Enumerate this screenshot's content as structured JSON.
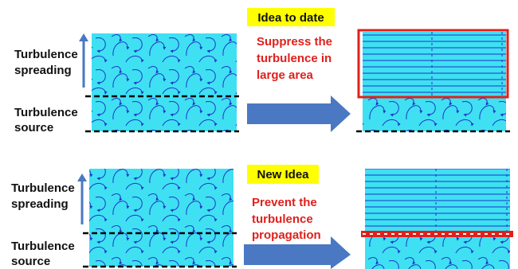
{
  "top": {
    "tag": "Idea to date",
    "message": [
      "Suppress the",
      "turbulence in",
      "large area"
    ],
    "spreading_label": [
      "Turbulence",
      "spreading"
    ],
    "source_label": [
      "Turbulence",
      "source"
    ]
  },
  "bottom": {
    "tag": "New Idea",
    "message": [
      "Prevent the",
      "turbulence",
      "propagation"
    ],
    "spreading_label": [
      "Turbulence",
      "spreading"
    ],
    "source_label": [
      "Turbulence",
      "source"
    ]
  }
}
